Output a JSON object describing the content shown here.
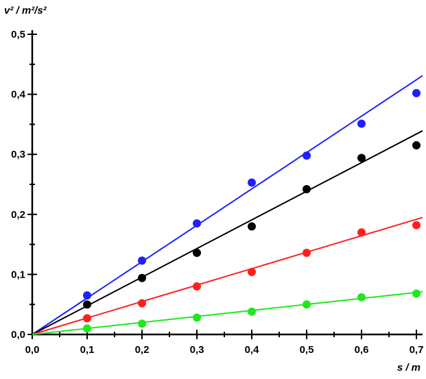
{
  "chart_data": {
    "type": "scatter",
    "title": "",
    "ylabel": "v² / m²/s²",
    "xlabel": "s / m",
    "xlim": [
      0,
      0.7
    ],
    "ylim": [
      0,
      0.5
    ],
    "x_ticks": [
      "0,0",
      "0,1",
      "0,2",
      "0,3",
      "0,4",
      "0,5",
      "0,6",
      "0,7"
    ],
    "y_ticks": [
      "0,0",
      "0,1",
      "0,2",
      "0,3",
      "0,4",
      "0,5"
    ],
    "grid": false,
    "legend": "none",
    "series": [
      {
        "color": "#1f1fff",
        "x": [
          0.1,
          0.2,
          0.3,
          0.4,
          0.5,
          0.6,
          0.7
        ],
        "y": [
          0.065,
          0.123,
          0.185,
          0.253,
          0.298,
          0.351,
          0.402
        ],
        "fit_slope": 0.606
      },
      {
        "color": "#000000",
        "x": [
          0.1,
          0.2,
          0.3,
          0.4,
          0.5,
          0.6,
          0.7
        ],
        "y": [
          0.05,
          0.094,
          0.136,
          0.18,
          0.242,
          0.294,
          0.315
        ],
        "fit_slope": 0.477
      },
      {
        "color": "#ff1f1f",
        "x": [
          0.1,
          0.2,
          0.3,
          0.4,
          0.5,
          0.6,
          0.7
        ],
        "y": [
          0.027,
          0.052,
          0.08,
          0.104,
          0.136,
          0.17,
          0.182
        ],
        "fit_slope": 0.274
      },
      {
        "color": "#1fe81f",
        "x": [
          0.1,
          0.2,
          0.3,
          0.4,
          0.5,
          0.6,
          0.7
        ],
        "y": [
          0.01,
          0.018,
          0.028,
          0.038,
          0.05,
          0.062,
          0.068
        ],
        "fit_slope": 0.1
      }
    ]
  }
}
